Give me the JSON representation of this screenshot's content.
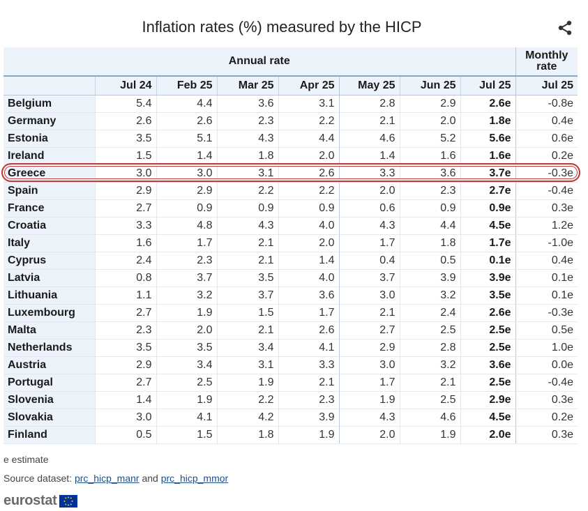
{
  "title": "Inflation rates (%) measured by the HICP",
  "header": {
    "annual_label": "Annual rate",
    "monthly_label_1": "Monthly",
    "monthly_label_2": "rate",
    "columns": [
      "Jul 24",
      "Feb 25",
      "Mar 25",
      "Apr 25",
      "May 25",
      "Jun 25",
      "Jul 25",
      "Jul 25"
    ]
  },
  "chart_data": {
    "type": "table",
    "title": "Inflation rates (%) measured by the HICP",
    "columns": [
      "Jul 24",
      "Feb 25",
      "Mar 25",
      "Apr 25",
      "May 25",
      "Jun 25",
      "Jul 25",
      "Jul 25"
    ],
    "column_groups": [
      {
        "label": "Annual rate",
        "span": 7
      },
      {
        "label": "Monthly rate",
        "span": 1
      }
    ],
    "highlighted_row": "Greece",
    "rows": [
      {
        "country": "Belgium",
        "values": [
          "5.4",
          "4.4",
          "3.6",
          "3.1",
          "2.8",
          "2.9",
          "2.6e",
          "-0.8e"
        ]
      },
      {
        "country": "Germany",
        "values": [
          "2.6",
          "2.6",
          "2.3",
          "2.2",
          "2.1",
          "2.0",
          "1.8e",
          "0.4e"
        ]
      },
      {
        "country": "Estonia",
        "values": [
          "3.5",
          "5.1",
          "4.3",
          "4.4",
          "4.6",
          "5.2",
          "5.6e",
          "0.6e"
        ]
      },
      {
        "country": "Ireland",
        "values": [
          "1.5",
          "1.4",
          "1.8",
          "2.0",
          "1.4",
          "1.6",
          "1.6e",
          "0.2e"
        ]
      },
      {
        "country": "Greece",
        "values": [
          "3.0",
          "3.0",
          "3.1",
          "2.6",
          "3.3",
          "3.6",
          "3.7e",
          "-0.3e"
        ]
      },
      {
        "country": "Spain",
        "values": [
          "2.9",
          "2.9",
          "2.2",
          "2.2",
          "2.0",
          "2.3",
          "2.7e",
          "-0.4e"
        ]
      },
      {
        "country": "France",
        "values": [
          "2.7",
          "0.9",
          "0.9",
          "0.9",
          "0.6",
          "0.9",
          "0.9e",
          "0.3e"
        ]
      },
      {
        "country": "Croatia",
        "values": [
          "3.3",
          "4.8",
          "4.3",
          "4.0",
          "4.3",
          "4.4",
          "4.5e",
          "1.2e"
        ]
      },
      {
        "country": "Italy",
        "values": [
          "1.6",
          "1.7",
          "2.1",
          "2.0",
          "1.7",
          "1.8",
          "1.7e",
          "-1.0e"
        ]
      },
      {
        "country": "Cyprus",
        "values": [
          "2.4",
          "2.3",
          "2.1",
          "1.4",
          "0.4",
          "0.5",
          "0.1e",
          "0.4e"
        ]
      },
      {
        "country": "Latvia",
        "values": [
          "0.8",
          "3.7",
          "3.5",
          "4.0",
          "3.7",
          "3.9",
          "3.9e",
          "0.1e"
        ]
      },
      {
        "country": "Lithuania",
        "values": [
          "1.1",
          "3.2",
          "3.7",
          "3.6",
          "3.0",
          "3.2",
          "3.5e",
          "0.1e"
        ]
      },
      {
        "country": "Luxembourg",
        "values": [
          "2.7",
          "1.9",
          "1.5",
          "1.7",
          "2.1",
          "2.4",
          "2.6e",
          "-0.3e"
        ]
      },
      {
        "country": "Malta",
        "values": [
          "2.3",
          "2.0",
          "2.1",
          "2.6",
          "2.7",
          "2.5",
          "2.5e",
          "0.5e"
        ]
      },
      {
        "country": "Netherlands",
        "values": [
          "3.5",
          "3.5",
          "3.4",
          "4.1",
          "2.9",
          "2.8",
          "2.5e",
          "1.0e"
        ]
      },
      {
        "country": "Austria",
        "values": [
          "2.9",
          "3.4",
          "3.1",
          "3.3",
          "3.0",
          "3.2",
          "3.6e",
          "0.0e"
        ]
      },
      {
        "country": "Portugal",
        "values": [
          "2.7",
          "2.5",
          "1.9",
          "2.1",
          "1.7",
          "2.1",
          "2.5e",
          "-0.4e"
        ]
      },
      {
        "country": "Slovenia",
        "values": [
          "1.4",
          "1.9",
          "2.2",
          "2.3",
          "1.9",
          "2.5",
          "2.9e",
          "0.3e"
        ]
      },
      {
        "country": "Slovakia",
        "values": [
          "3.0",
          "4.1",
          "4.2",
          "3.9",
          "4.3",
          "4.6",
          "4.5e",
          "0.2e"
        ]
      },
      {
        "country": "Finland",
        "values": [
          "0.5",
          "1.5",
          "1.8",
          "1.9",
          "2.0",
          "1.9",
          "2.0e",
          "0.3e"
        ]
      }
    ]
  },
  "footnote": "e estimate",
  "source": {
    "prefix": "Source dataset: ",
    "link1": "prc_hicp_manr",
    "middle": " and ",
    "link2": "prc_hicp_mmor"
  },
  "logo_text": "eurostat",
  "colors": {
    "highlight": "#c0373a",
    "header_bg": "#edf3fa",
    "link": "#1f4e8c",
    "eu_blue": "#003399",
    "eu_yellow": "#ffcc00"
  }
}
